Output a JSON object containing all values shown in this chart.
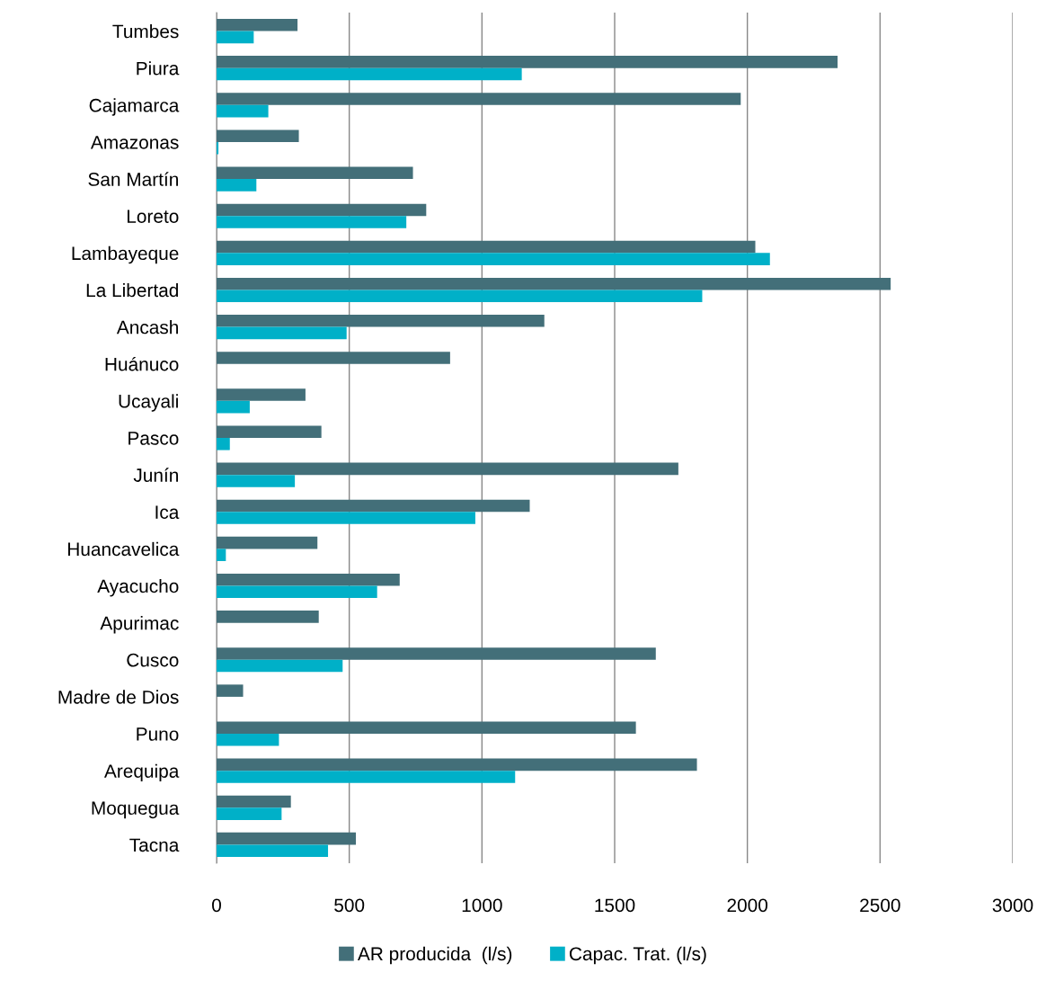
{
  "chart_data": {
    "type": "bar",
    "orientation": "horizontal",
    "categories": [
      "Tumbes",
      "Piura",
      "Cajamarca",
      "Amazonas",
      "San Martín",
      "Loreto",
      "Lambayeque",
      "La Libertad",
      "Ancash",
      "Huánuco",
      "Ucayali",
      "Pasco",
      "Junín",
      "Ica",
      "Huancavelica",
      "Ayacucho",
      "Apurimac",
      "Cusco",
      "Madre de Dios",
      "Puno",
      "Arequipa",
      "Moquegua",
      "Tacna"
    ],
    "series": [
      {
        "name": "AR producida  (l/s)",
        "color": "#436f79",
        "values": [
          305,
          2340,
          1975,
          310,
          740,
          790,
          2030,
          2540,
          1235,
          880,
          335,
          395,
          1740,
          1180,
          380,
          690,
          385,
          1655,
          100,
          1580,
          1810,
          280,
          525
        ]
      },
      {
        "name": "Capac. Trat. (l/s)",
        "color": "#00b0c8",
        "values": [
          140,
          1150,
          195,
          7,
          150,
          715,
          2085,
          1830,
          490,
          null,
          125,
          50,
          295,
          975,
          35,
          605,
          null,
          475,
          null,
          235,
          1125,
          245,
          420
        ]
      }
    ],
    "xlim": [
      0,
      3000
    ],
    "xticks": [
      0,
      500,
      1000,
      1500,
      2000,
      2500,
      3000
    ],
    "grid": "x",
    "legend": "bottom"
  }
}
